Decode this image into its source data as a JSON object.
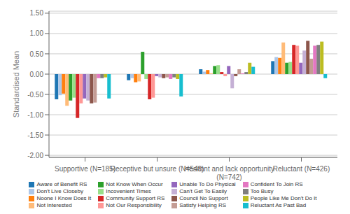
{
  "chart_data": {
    "type": "bar",
    "ylabel": "Standardised Mean",
    "categories": [
      "Supportive (N=185)",
      "Receptive but unsure (N=548)",
      "Hesitant and lack opportunity\n(N=742)",
      "Reluctant (N=426)"
    ],
    "series": [
      {
        "name": "Aware of Benefit RS",
        "color": "#1f77b4",
        "values": [
          -0.62,
          -0.15,
          0.12,
          0.32
        ]
      },
      {
        "name": "Don't Live Closeby",
        "color": "#aec7e8",
        "values": [
          -0.52,
          -0.1,
          0.06,
          0.42
        ]
      },
      {
        "name": "Noone I Know Does It",
        "color": "#ff7f0e",
        "values": [
          -0.48,
          -0.2,
          0.1,
          0.4
        ]
      },
      {
        "name": "Not Interested",
        "color": "#ffbb78",
        "values": [
          -0.78,
          -0.18,
          0.02,
          0.78
        ]
      },
      {
        "name": "Not Know When Occur",
        "color": "#2ca02c",
        "values": [
          -0.65,
          0.55,
          0.2,
          0.28
        ]
      },
      {
        "name": "Incovenient Times",
        "color": "#98df8a",
        "values": [
          -0.58,
          -0.12,
          0.22,
          0.3
        ]
      },
      {
        "name": "Community Support RS",
        "color": "#d62728",
        "values": [
          -1.08,
          -0.62,
          0.05,
          0.72
        ]
      },
      {
        "name": "Not Our Responsibility",
        "color": "#ff9896",
        "values": [
          -0.72,
          -0.58,
          -0.05,
          0.7
        ]
      },
      {
        "name": "Unable To Do Physical",
        "color": "#9467bd",
        "values": [
          -0.6,
          -0.05,
          0.2,
          0.28
        ]
      },
      {
        "name": "Can't Get To Easily",
        "color": "#c5b0d5",
        "values": [
          -0.65,
          -0.08,
          -0.35,
          0.58
        ]
      },
      {
        "name": "Council No Support",
        "color": "#8c564b",
        "values": [
          -0.72,
          -0.1,
          -0.05,
          0.82
        ]
      },
      {
        "name": "Satisfy Helping RS",
        "color": "#c49c94",
        "values": [
          -0.7,
          -0.08,
          0.12,
          0.38
        ]
      },
      {
        "name": "Confident To Join RS",
        "color": "#e377c2",
        "values": [
          -0.1,
          -0.12,
          0.02,
          0.7
        ]
      },
      {
        "name": "Too Busy",
        "color": "#7f7f7f",
        "values": [
          -0.1,
          -0.08,
          0.05,
          0.72
        ]
      },
      {
        "name": "People Like Me Don't Do It",
        "color": "#bcbd22",
        "values": [
          -0.08,
          -0.12,
          0.28,
          0.8
        ]
      },
      {
        "name": "Reluctant As Past Bad",
        "color": "#17becf",
        "values": [
          -0.6,
          -0.55,
          0.18,
          -0.1
        ]
      }
    ],
    "ylim": [
      -2.05,
      1.55
    ],
    "yticks": [
      {
        "value": -2.0,
        "label": "-2.00"
      },
      {
        "value": -1.5,
        "label": "-1.50"
      },
      {
        "value": -1.0,
        "label": "-1.00"
      },
      {
        "value": -0.5,
        "label": "-0.50"
      },
      {
        "value": 0.0,
        "label": "0.00"
      },
      {
        "value": 0.5,
        "label": "0.50"
      },
      {
        "value": 1.0,
        "label": "1.00"
      },
      {
        "value": 1.5,
        "label": "1.50"
      }
    ],
    "grid": true,
    "legend": "bottom"
  }
}
